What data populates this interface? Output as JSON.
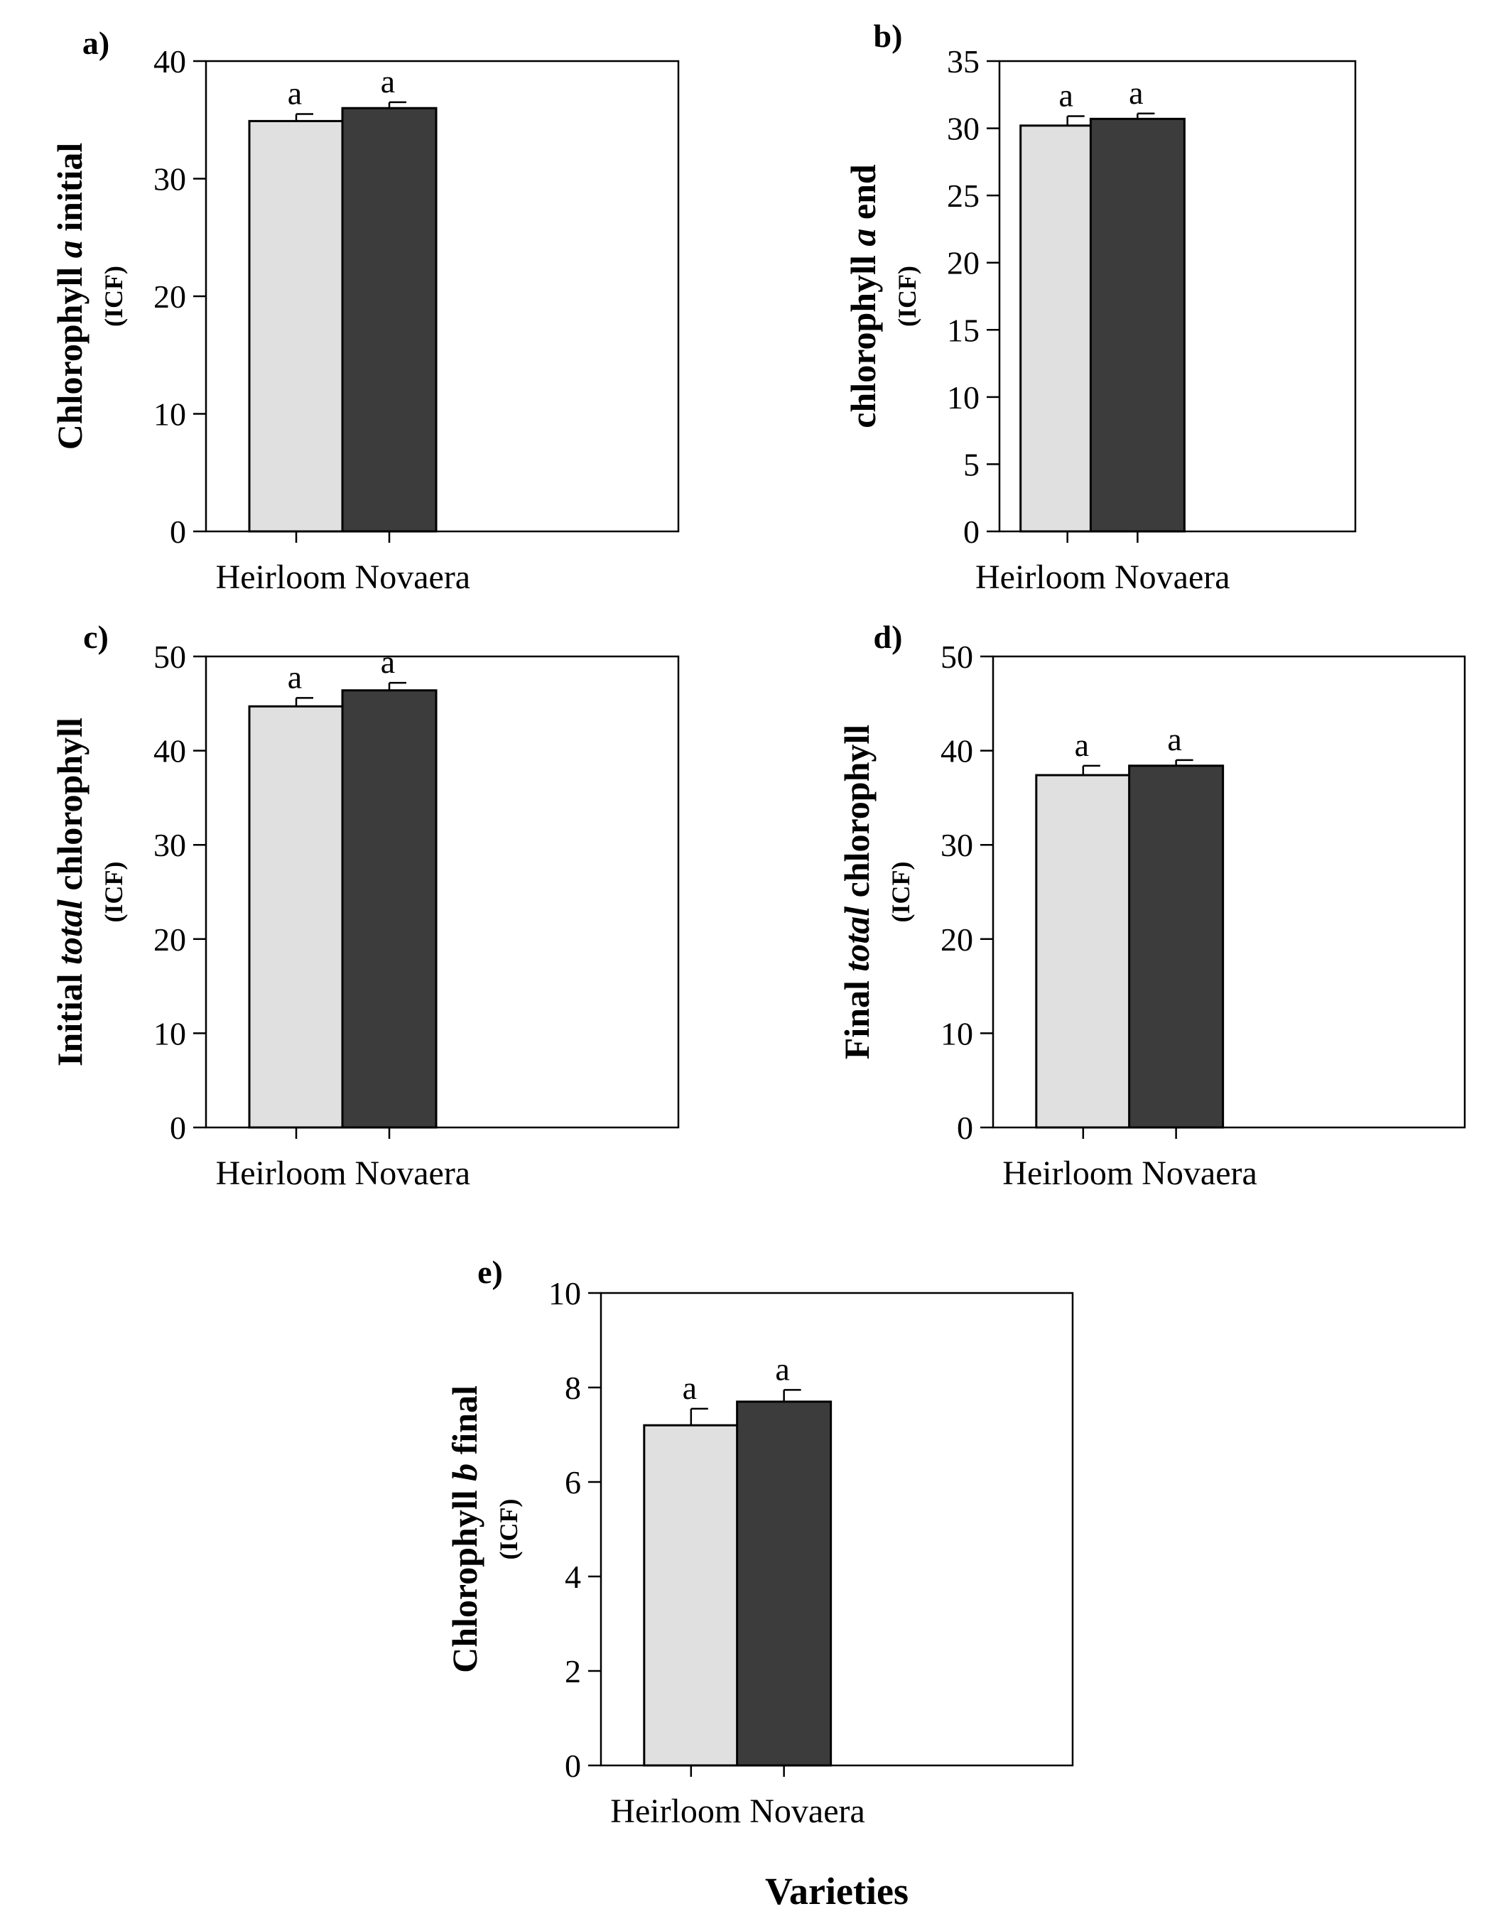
{
  "figure": {
    "common_xlabel": "Varieties",
    "bar_colors": [
      "#e0e0e0",
      "#3c3c3c"
    ],
    "stroke_color": "#000000"
  },
  "chart_data": [
    {
      "type": "bar",
      "panel_label": "a)",
      "ylabel_parts": [
        {
          "text": "Chlorophyll ",
          "italic": false
        },
        {
          "text": "a",
          "italic": true
        },
        {
          "text": " initial",
          "italic": false
        }
      ],
      "ylabel_unit": "(ICF)",
      "xlabel": "Heirloom Novaera",
      "categories": [
        "Heirloom",
        "Novaera"
      ],
      "values": [
        34.9,
        36.0
      ],
      "errors": [
        0.6,
        0.5
      ],
      "significance": [
        "a",
        "a"
      ],
      "ylim": [
        0,
        40
      ],
      "yticks": [
        0,
        10,
        20,
        30,
        40
      ]
    },
    {
      "type": "bar",
      "panel_label": "b)",
      "ylabel_parts": [
        {
          "text": "chlorophyll ",
          "italic": false
        },
        {
          "text": "a",
          "italic": true
        },
        {
          "text": " end",
          "italic": false
        }
      ],
      "ylabel_unit": "(ICF)",
      "xlabel": "Heirloom Novaera",
      "categories": [
        "Heirloom",
        "Novaera"
      ],
      "values": [
        30.2,
        30.7
      ],
      "errors": [
        0.7,
        0.4
      ],
      "significance": [
        "a",
        "a"
      ],
      "ylim": [
        0,
        35
      ],
      "yticks": [
        0,
        5,
        10,
        15,
        20,
        25,
        30,
        35
      ]
    },
    {
      "type": "bar",
      "panel_label": "c)",
      "ylabel_parts": [
        {
          "text": "Initial ",
          "italic": false
        },
        {
          "text": "total",
          "italic": true
        },
        {
          "text": " chlorophyll",
          "italic": false
        }
      ],
      "ylabel_unit": "(ICF)",
      "xlabel": "Heirloom Novaera",
      "categories": [
        "Heirloom",
        "Novaera"
      ],
      "values": [
        44.7,
        46.4
      ],
      "errors": [
        0.9,
        0.8
      ],
      "significance": [
        "a",
        "a"
      ],
      "ylim": [
        0,
        50
      ],
      "yticks": [
        0,
        10,
        20,
        30,
        40,
        50
      ]
    },
    {
      "type": "bar",
      "panel_label": "d)",
      "ylabel_parts": [
        {
          "text": "Final ",
          "italic": false
        },
        {
          "text": "total",
          "italic": true
        },
        {
          "text": " chlorophyll",
          "italic": false
        }
      ],
      "ylabel_unit": "(ICF)",
      "xlabel": "Heirloom Novaera",
      "categories": [
        "Heirloom",
        "Novaera"
      ],
      "values": [
        37.4,
        38.4
      ],
      "errors": [
        1.0,
        0.6
      ],
      "significance": [
        "a",
        "a"
      ],
      "ylim": [
        0,
        50
      ],
      "yticks": [
        0,
        10,
        20,
        30,
        40,
        50
      ]
    },
    {
      "type": "bar",
      "panel_label": "e)",
      "ylabel_parts": [
        {
          "text": "Chlorophyll ",
          "italic": false
        },
        {
          "text": "b",
          "italic": true
        },
        {
          "text": " final",
          "italic": false
        }
      ],
      "ylabel_unit": "(ICF)",
      "xlabel": "Heirloom Novaera",
      "categories": [
        "Heirloom",
        "Novaera"
      ],
      "values": [
        7.2,
        7.7
      ],
      "errors": [
        0.35,
        0.25
      ],
      "significance": [
        "a",
        "a"
      ],
      "ylim": [
        0,
        10
      ],
      "yticks": [
        0,
        2,
        4,
        6,
        8,
        10
      ]
    }
  ]
}
